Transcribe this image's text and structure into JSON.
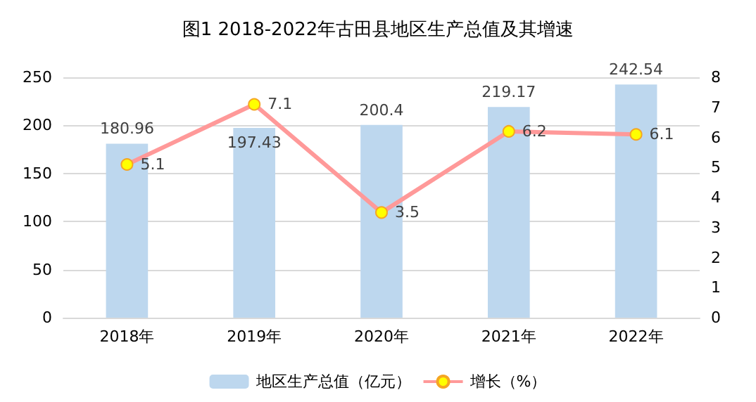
{
  "chart_data": {
    "type": "bar",
    "title": "图1 2018-2022年古田县地区生产总值及其增速",
    "categories": [
      "2018年",
      "2019年",
      "2020年",
      "2021年",
      "2022年"
    ],
    "series": [
      {
        "name": "地区生产总值（亿元）",
        "color": "#bdd7ee",
        "values": [
          180.96,
          197.43,
          200.4,
          219.17,
          242.54
        ]
      },
      {
        "name": "增长（%）",
        "type": "line",
        "axis": "y2",
        "color": "#ff9999",
        "values": [
          5.1,
          7.1,
          3.5,
          6.2,
          6.1
        ]
      }
    ],
    "ylim": [
      0,
      250
    ],
    "yticks": [
      0,
      50,
      100,
      150,
      200,
      250
    ],
    "y2lim": [
      0,
      8
    ],
    "y2ticks": [
      0,
      1,
      2,
      3,
      4,
      5,
      6,
      7,
      8
    ],
    "grid": "y",
    "legend": "bottom",
    "data_labels": true,
    "marker": "circle"
  }
}
